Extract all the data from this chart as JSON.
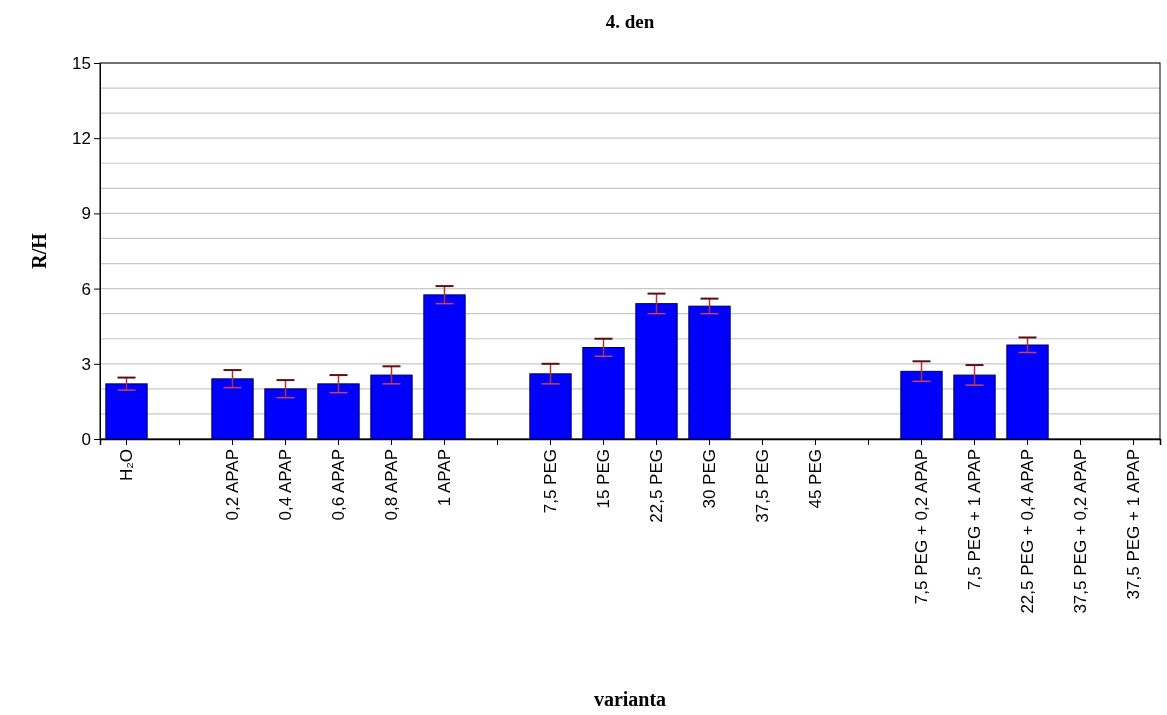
{
  "chart_data": {
    "type": "bar",
    "title": "4. den",
    "xlabel": "varianta",
    "ylabel": "R/H",
    "categories": [
      "H₂O",
      null,
      "0,2 APAP",
      "0,4 APAP",
      "0,6 APAP",
      "0,8 APAP",
      "1  APAP",
      null,
      "7,5 PEG",
      "15 PEG",
      "22,5 PEG",
      "30 PEG",
      "37,5 PEG",
      "45 PEG",
      null,
      "7,5 PEG + 0,2 APAP",
      "7,5 PEG + 1 APAP",
      "22,5 PEG + 0,4 APAP",
      "37,5 PEG + 0,2 APAP",
      "37,5 PEG + 1 APAP"
    ],
    "values": [
      2.2,
      null,
      2.4,
      2.0,
      2.2,
      2.55,
      5.75,
      null,
      2.6,
      3.65,
      5.4,
      5.3,
      null,
      null,
      null,
      2.7,
      2.55,
      3.75,
      null,
      null
    ],
    "errors": [
      0.25,
      null,
      0.35,
      0.35,
      0.35,
      0.35,
      0.35,
      null,
      0.4,
      0.35,
      0.4,
      0.3,
      null,
      null,
      null,
      0.4,
      0.4,
      0.3,
      null,
      null
    ],
    "color": "#0000ff",
    "ylim": [
      0,
      15
    ],
    "yticks": [
      0,
      {
        "value": 1,
        "label": null
      },
      {
        "value": 2,
        "label": null
      },
      3,
      {
        "value": 4,
        "label": null
      },
      {
        "value": 5,
        "label": null
      },
      6,
      {
        "value": 7,
        "label": null
      },
      {
        "value": 8,
        "label": null
      },
      9,
      {
        "value": 10,
        "label": null
      },
      {
        "value": 11,
        "label": null
      },
      12,
      {
        "value": 13,
        "label": null
      },
      {
        "value": 14,
        "label": null
      },
      15
    ],
    "grid": "y"
  }
}
